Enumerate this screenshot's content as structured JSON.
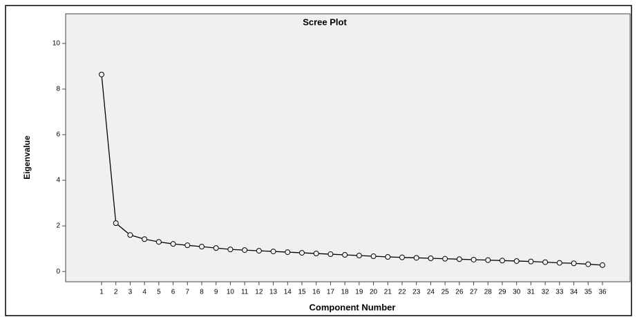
{
  "chart_data": {
    "type": "line",
    "title": "Scree Plot",
    "x_label": "Component Number",
    "y_label": "Eigenvalue",
    "categories": [
      1,
      2,
      3,
      4,
      5,
      6,
      7,
      8,
      9,
      10,
      11,
      12,
      13,
      14,
      15,
      16,
      17,
      18,
      19,
      20,
      21,
      22,
      23,
      24,
      25,
      26,
      27,
      28,
      29,
      30,
      31,
      32,
      33,
      34,
      35,
      36
    ],
    "values": [
      8.64,
      2.12,
      1.6,
      1.42,
      1.3,
      1.21,
      1.15,
      1.09,
      1.03,
      0.97,
      0.94,
      0.91,
      0.88,
      0.85,
      0.82,
      0.79,
      0.76,
      0.73,
      0.7,
      0.67,
      0.64,
      0.62,
      0.6,
      0.58,
      0.56,
      0.54,
      0.52,
      0.5,
      0.48,
      0.46,
      0.44,
      0.41,
      0.38,
      0.36,
      0.32,
      0.28
    ],
    "color": "#000000",
    "ylim": [
      -0.45,
      11.3
    ],
    "yticks": [
      0,
      2,
      4,
      6,
      8,
      10
    ]
  }
}
